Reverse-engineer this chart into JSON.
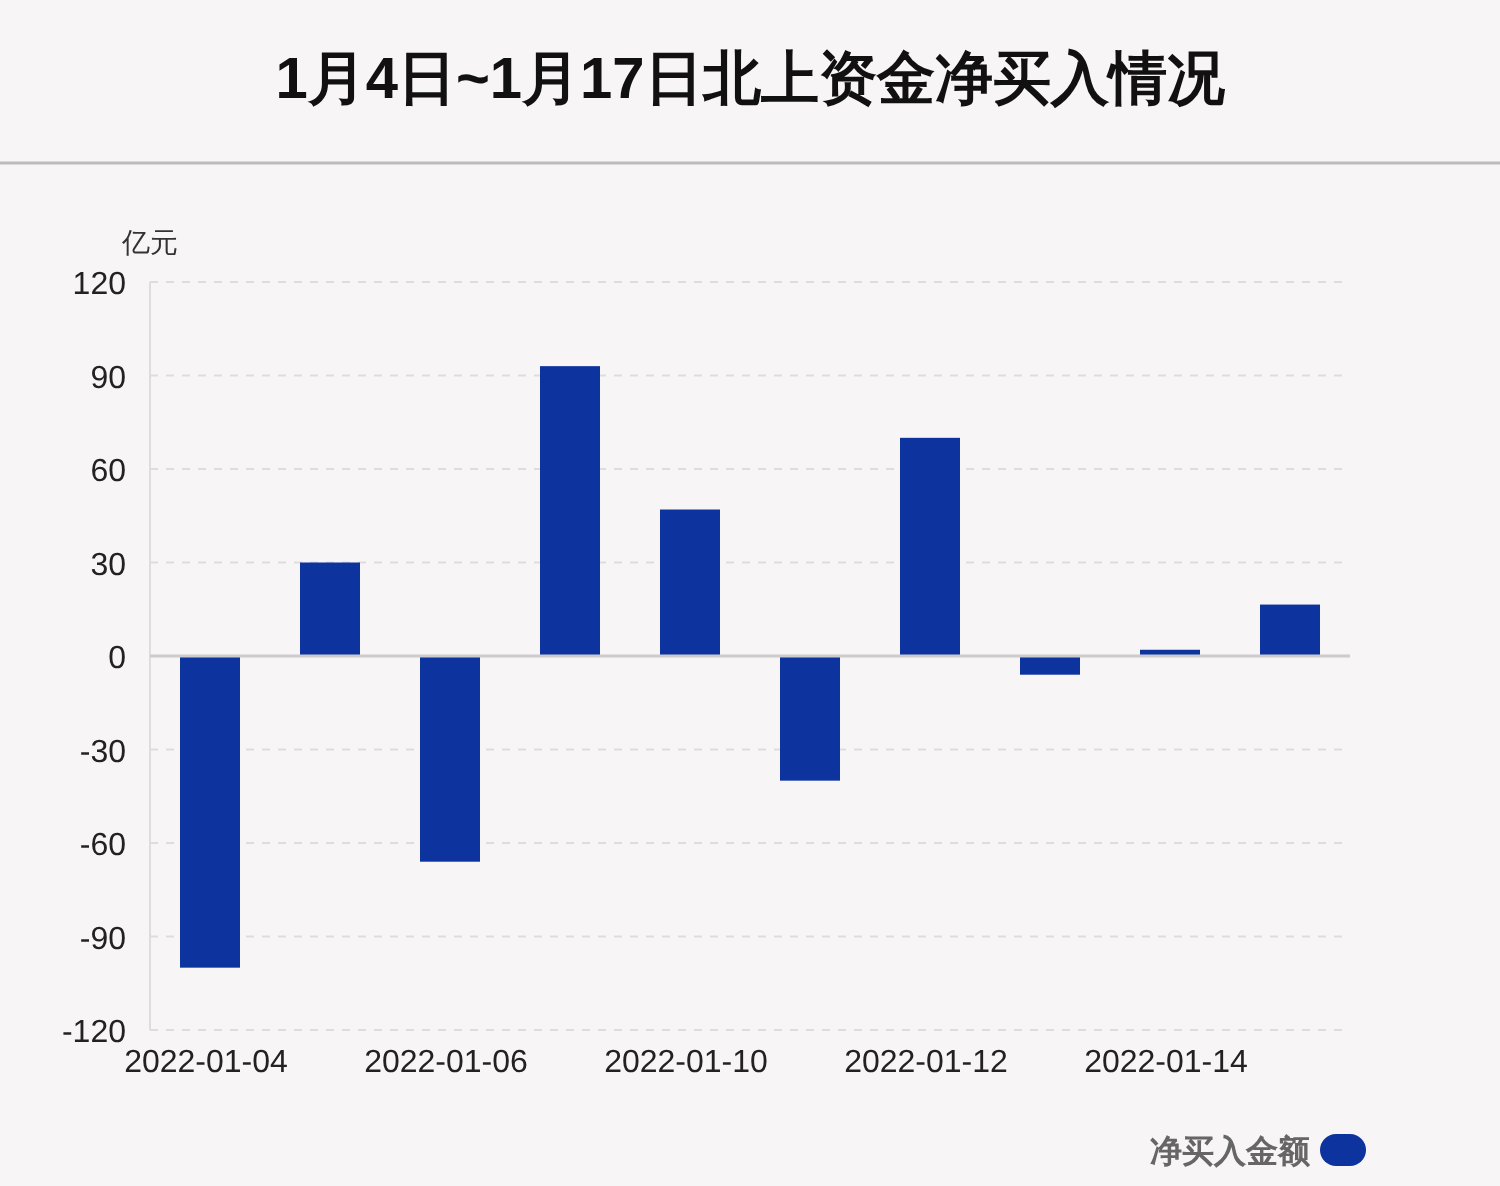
{
  "chart_data": {
    "type": "bar",
    "title": "1月4日~1月17日北上资金净买入情况",
    "ylabel": "亿元",
    "categories": [
      "2022-01-04",
      null,
      "2022-01-06",
      null,
      "2022-01-10",
      null,
      "2022-01-12",
      null,
      "2022-01-14",
      null
    ],
    "series": [
      {
        "name": "净买入金额",
        "color": "#0d339f",
        "values": [
          -100,
          30,
          -66,
          93,
          47,
          -40,
          70,
          -6,
          2,
          16.5
        ]
      }
    ],
    "ylim": [
      -120,
      120
    ],
    "yticks": [
      -120,
      -90,
      -60,
      -30,
      0,
      30,
      60,
      90,
      120
    ],
    "grid": "y",
    "legend": "bottom right"
  }
}
